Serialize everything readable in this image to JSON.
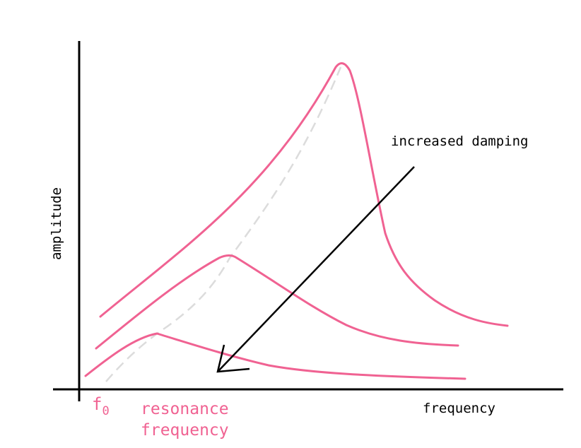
{
  "labels": {
    "y_axis": "amplitude",
    "x_axis": "frequency",
    "annotation": "increased damping",
    "f0_base": "f",
    "f0_sub": "0",
    "resonance_line1": "resonance",
    "resonance_line2": "frequency"
  },
  "colors": {
    "curve": "#f06292",
    "dashed": "#dcdcdc",
    "axis": "#000000",
    "arrow": "#000000"
  },
  "diagram": {
    "curves": [
      "low damping",
      "medium damping",
      "high damping"
    ],
    "resonance_trace": "dashed",
    "arrow_direction": "down-left"
  }
}
